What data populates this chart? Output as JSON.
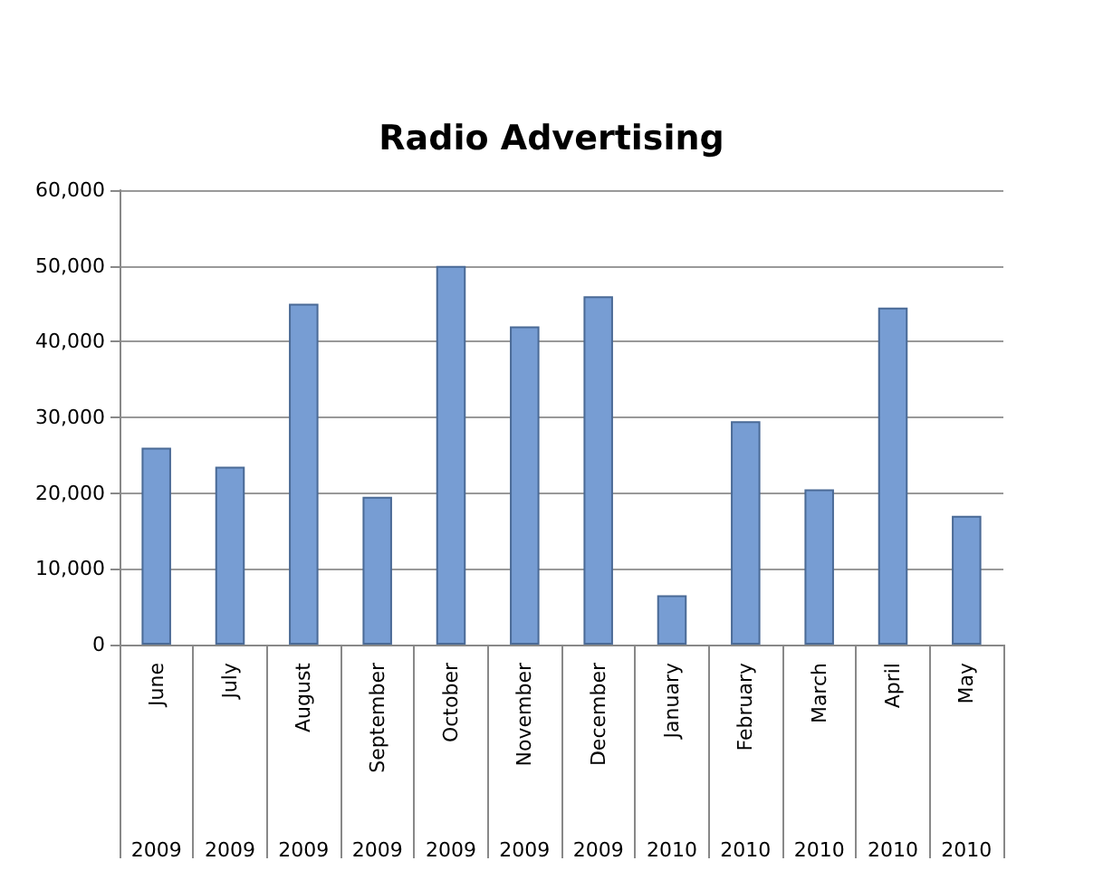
{
  "chart_data": {
    "type": "bar",
    "title": "Radio Advertising",
    "categories": [
      "June\n2009",
      "July\n2009",
      "August\n2009",
      "September\n2009",
      "October\n2009",
      "November\n2009",
      "December\n2009",
      "January\n2010",
      "February\n2010",
      "March\n2010",
      "April\n2010",
      "May\n2010"
    ],
    "values": [
      26000,
      23500,
      45000,
      19500,
      50000,
      42000,
      46000,
      6500,
      29500,
      20500,
      44500,
      17000
    ],
    "color": "#779dd3",
    "ylim": [
      0,
      60000
    ],
    "yticks": [
      0,
      {
        "value": 10000,
        "label": "10,000"
      },
      {
        "value": 20000,
        "label": "20,000"
      },
      {
        "value": 30000,
        "label": "30,000"
      },
      {
        "value": 40000,
        "label": "40,000"
      },
      {
        "value": 50000,
        "label": "50,000"
      },
      {
        "value": 60000,
        "label": "60,000"
      }
    ],
    "grid": "y"
  }
}
